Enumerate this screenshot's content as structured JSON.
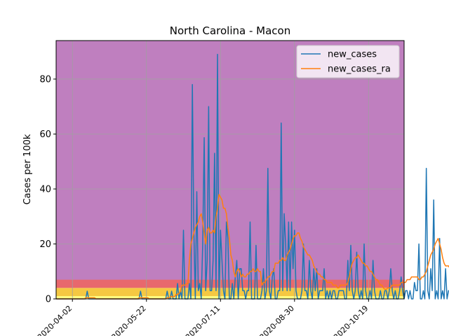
{
  "chart_data": {
    "type": "line",
    "title": "North Carolina - Macon",
    "xlabel": "",
    "ylabel": "Cases per 100k",
    "x_tick_labels": [
      "2020-04-02",
      "2020-05-22",
      "2020-07-11",
      "2020-08-30",
      "2020-10-19"
    ],
    "y_tick_labels": [
      "0",
      "20",
      "40",
      "60",
      "80"
    ],
    "xlim": [
      "2020-03-22",
      "2020-11-12"
    ],
    "ylim": [
      0,
      94
    ],
    "grid": true,
    "legend_position": "top-right",
    "background_bands": [
      {
        "from": 0,
        "to": 1,
        "color": "#ffff80"
      },
      {
        "from": 1,
        "to": 4,
        "color": "#f5c842"
      },
      {
        "from": 4,
        "to": 7,
        "color": "#e8686d"
      },
      {
        "from": 7,
        "to": 94,
        "color": "#bf7fbf"
      }
    ],
    "x_start": "2020-03-22",
    "series": [
      {
        "name": "new_cases",
        "color": "#1f77b4",
        "values": [
          0,
          0,
          0,
          0,
          0,
          0,
          0,
          0,
          0,
          0,
          0,
          0,
          0,
          0,
          0,
          0,
          0,
          0,
          0,
          0,
          0,
          2.8,
          0,
          0,
          0,
          0,
          0,
          0,
          0,
          0,
          0,
          0,
          0,
          0,
          0,
          0,
          0,
          0,
          0,
          0,
          0,
          0,
          0,
          0,
          0,
          0,
          0,
          0,
          0,
          0,
          0,
          0,
          0,
          0,
          0,
          0,
          0,
          2.8,
          0,
          0,
          0,
          0,
          0,
          0,
          0,
          0,
          0,
          0,
          0,
          0,
          0,
          0,
          0,
          0,
          0,
          2.8,
          0,
          0,
          2.8,
          0,
          0,
          0,
          5.6,
          0,
          2.8,
          0,
          25,
          0,
          0,
          0,
          5.6,
          0,
          78,
          25,
          0,
          39,
          3,
          5.6,
          0,
          20,
          58.7,
          3,
          14,
          70,
          3,
          3,
          14,
          53,
          3,
          89,
          0,
          25,
          14,
          3,
          0,
          28,
          22,
          0,
          0,
          5.6,
          0,
          8,
          14,
          0,
          11,
          11,
          3,
          3,
          0,
          3,
          3,
          28,
          0,
          0,
          0,
          19.5,
          0,
          0,
          0,
          3,
          11,
          0,
          3,
          47.5,
          3,
          0,
          8,
          11,
          0,
          0,
          3,
          3,
          64,
          3,
          31,
          20,
          3,
          28,
          3,
          28,
          11,
          25,
          3,
          0,
          0,
          0,
          3,
          20,
          3,
          3,
          0,
          14,
          3,
          0,
          11,
          3,
          11,
          0,
          3,
          3,
          3,
          11,
          0,
          3,
          0,
          3,
          0,
          3,
          3,
          0,
          0,
          3,
          3,
          3,
          3,
          0,
          0,
          14,
          3,
          19.5,
          3,
          0,
          3,
          17,
          3,
          0,
          3,
          0,
          20,
          3,
          0,
          0,
          3,
          0,
          14,
          3,
          0,
          0,
          0,
          3,
          0,
          0,
          3,
          3,
          0,
          3,
          11,
          3,
          0,
          3,
          0,
          0,
          3,
          8,
          3,
          0,
          3,
          3,
          0,
          3,
          0,
          0,
          6,
          3,
          3,
          20,
          0,
          0,
          3,
          0,
          47.5,
          3,
          0,
          11,
          3,
          36,
          0,
          3,
          0,
          22,
          0,
          3,
          0,
          11,
          0,
          3,
          3,
          3,
          28,
          0,
          3,
          0,
          3,
          0,
          0,
          14,
          3,
          3,
          11,
          3,
          3,
          42,
          25,
          3,
          0,
          3,
          3,
          0,
          3,
          0,
          3,
          11,
          3,
          3,
          0,
          11,
          3,
          0,
          3,
          3,
          14,
          3,
          11,
          3,
          0,
          0,
          33.5,
          3,
          3,
          0,
          0,
          14,
          14
        ],
        "offset_days": 0
      },
      {
        "name": "new_cases_ra",
        "color": "#ff7f0e",
        "values": [
          0,
          0,
          0,
          0,
          0,
          0,
          0,
          0,
          0,
          0,
          0,
          0,
          0,
          0,
          0,
          0,
          0,
          0,
          0,
          0,
          0.4,
          0.4,
          0.4,
          0.4,
          0.4,
          0.4,
          0.4,
          0,
          0,
          0,
          0,
          0,
          0,
          0,
          0,
          0,
          0,
          0,
          0,
          0,
          0,
          0,
          0,
          0,
          0,
          0,
          0,
          0,
          0,
          0,
          0,
          0,
          0,
          0,
          0,
          0,
          0.4,
          0.4,
          0.4,
          0.4,
          0.4,
          0.4,
          0.4,
          0,
          0,
          0,
          0,
          0,
          0,
          0,
          0,
          0,
          0,
          0,
          0,
          0.4,
          0.4,
          0.8,
          0.8,
          0.8,
          0.8,
          1.6,
          1.6,
          2,
          2.8,
          5,
          5,
          5,
          5.5,
          5.5,
          14,
          20,
          22,
          24,
          26,
          27,
          28,
          30,
          31,
          28,
          24,
          20,
          25,
          26,
          24,
          24,
          25,
          24,
          30,
          33,
          38,
          37,
          36,
          33,
          33,
          31,
          26,
          22,
          16,
          14,
          10,
          8,
          10,
          11,
          10,
          8,
          9,
          8,
          8,
          9,
          9,
          10,
          10,
          11,
          10,
          10,
          11,
          10,
          10,
          5,
          6,
          6,
          7,
          8,
          8,
          9,
          10,
          10,
          13,
          13,
          13,
          14,
          14,
          15,
          14,
          14,
          16,
          17,
          18,
          20,
          22,
          23,
          23,
          24,
          24,
          22,
          21,
          19,
          18,
          17,
          16,
          16,
          15,
          14,
          12,
          11,
          10,
          9,
          9,
          8,
          8,
          7,
          7,
          6,
          6,
          6,
          6,
          5,
          5,
          5,
          4,
          4,
          5,
          5,
          5,
          5,
          5,
          6,
          8,
          11,
          13,
          14,
          15,
          15,
          16,
          15,
          14,
          13,
          13,
          12,
          12,
          11,
          10,
          10,
          9,
          8,
          7,
          7,
          6,
          5,
          5,
          4,
          3.5,
          3.5,
          4,
          4,
          4,
          5,
          5,
          5,
          5,
          5,
          5,
          6,
          6,
          6,
          6,
          7,
          7,
          7,
          8,
          8,
          8,
          8,
          8,
          7,
          7,
          8,
          8,
          9,
          10,
          12,
          14,
          16,
          17,
          18,
          20,
          21,
          22,
          20,
          18,
          15,
          13,
          12,
          12,
          12,
          11,
          11,
          11,
          10,
          10,
          10,
          9,
          9,
          9,
          10,
          10,
          11,
          12,
          13,
          15,
          17,
          17,
          18,
          18,
          18,
          17,
          16,
          14,
          12,
          11,
          10,
          11,
          11,
          12,
          12,
          11,
          11,
          12,
          12,
          11,
          11
        ],
        "offset_days": 0
      }
    ]
  }
}
